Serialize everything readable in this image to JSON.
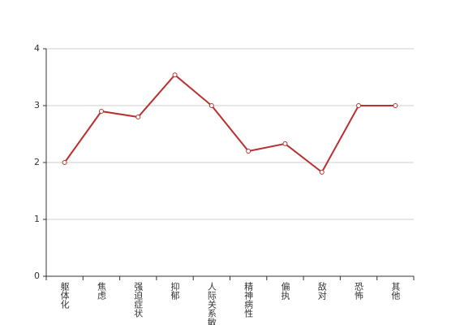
{
  "chart_data": {
    "type": "line",
    "categories": [
      "躯体化",
      "焦虑",
      "强迫症状",
      "抑郁",
      "人际关系敏感",
      "精神病性",
      "偏执",
      "敌对",
      "恐怖",
      "其他"
    ],
    "values": [
      2.0,
      2.9,
      2.8,
      3.54,
      3.0,
      2.2,
      2.33,
      1.83,
      3.0,
      3.0
    ],
    "color": "#b8312f",
    "ylim": [
      0,
      4
    ],
    "yticks": [
      0,
      1,
      2,
      3,
      4
    ],
    "grid": true
  }
}
